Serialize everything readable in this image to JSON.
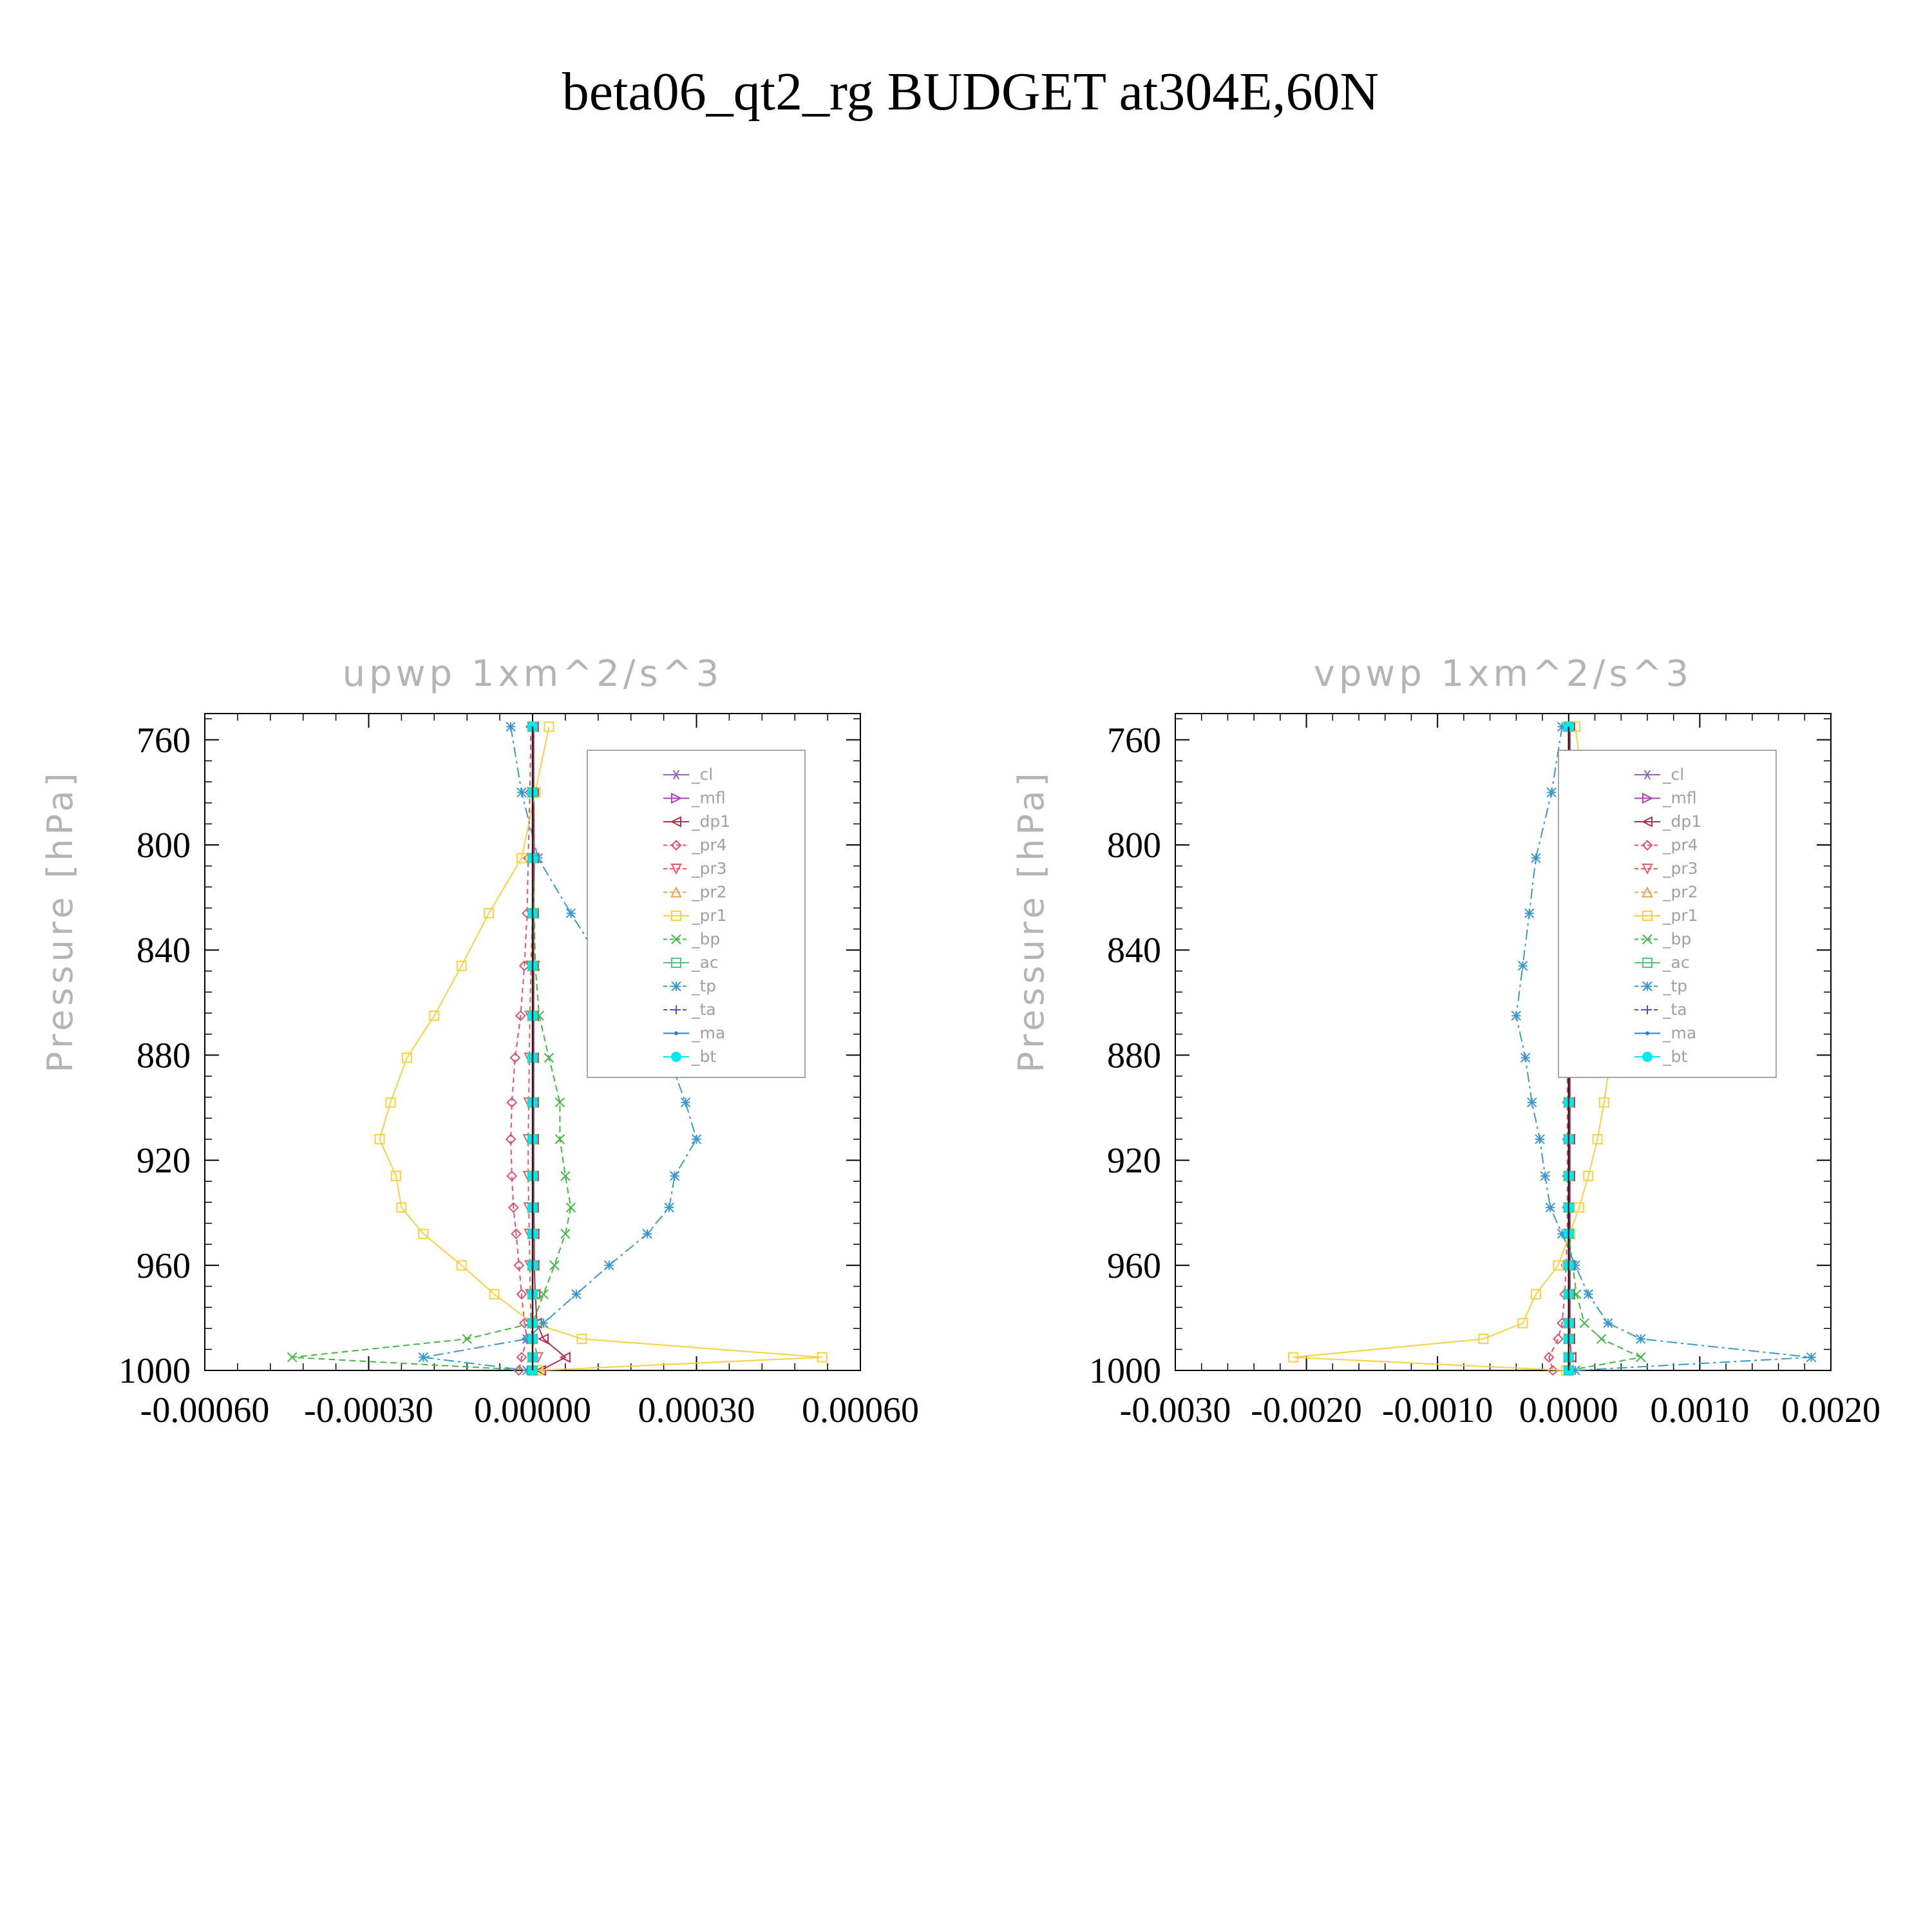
{
  "figure": {
    "title": "beta06_qt2_rg  BUDGET at304E,60N"
  },
  "chart_data": [
    {
      "type": "line",
      "title": "upwp   1xm^2/s^3",
      "ylabel": "Pressure [hPa]",
      "xlabel": "",
      "xlim": [
        -0.0006,
        0.0006
      ],
      "ylim": [
        1000,
        750
      ],
      "x_ticks": [
        -0.0006,
        -0.0003,
        0.0,
        0.0003,
        0.0006
      ],
      "x_tick_labels": [
        "-0.00060",
        "-0.00030",
        "0.00000",
        "0.00030",
        "0.00060"
      ],
      "y_ticks": [
        760,
        800,
        840,
        880,
        920,
        960,
        1000
      ],
      "y_tick_labels": [
        "760",
        "800",
        "840",
        "880",
        "920",
        "960",
        "1000"
      ],
      "grid": false,
      "legend_position": "upper-right",
      "pressure_levels": [
        755,
        780,
        805,
        826,
        846,
        865,
        881,
        898,
        912,
        926,
        938,
        948,
        960,
        971,
        982,
        988,
        995,
        1000
      ],
      "series": [
        {
          "name": "_cl",
          "color": "#9a5cc8",
          "marker": "star",
          "dash": "",
          "values": [
            0,
            0,
            0,
            0,
            0,
            0,
            0,
            0,
            0,
            0,
            0,
            0,
            0,
            0,
            0,
            0,
            0,
            0
          ]
        },
        {
          "name": "_mfl",
          "color": "#b040b8",
          "marker": "tri-right",
          "dash": "",
          "values": [
            0,
            0,
            0,
            0,
            0,
            0,
            0,
            0,
            0,
            0,
            0,
            0,
            0,
            0,
            0,
            0,
            0,
            0
          ]
        },
        {
          "name": "_dp1",
          "color": "#c0284a",
          "marker": "tri-left",
          "dash": "",
          "values": [
            2e-06,
            2e-06,
            3e-06,
            2e-06,
            2e-06,
            2e-06,
            2e-06,
            2e-06,
            2e-06,
            2e-06,
            2e-06,
            3e-06,
            3e-06,
            5e-06,
            8e-06,
            2e-05,
            6e-05,
            1.5e-05
          ]
        },
        {
          "name": "_pr4",
          "color": "#e05070",
          "marker": "diamond",
          "dash": "8,6",
          "values": [
            -3e-06,
            -5e-06,
            -8e-06,
            -1e-05,
            -1.5e-05,
            -2.2e-05,
            -3.2e-05,
            -3.8e-05,
            -4e-05,
            -3.8e-05,
            -3.5e-05,
            -3e-05,
            -2.5e-05,
            -2e-05,
            -1.5e-05,
            -1e-05,
            -2e-05,
            -2.5e-05
          ]
        },
        {
          "name": "_pr3",
          "color": "#e06060",
          "marker": "tri-down",
          "dash": "8,6",
          "values": [
            0,
            0,
            0,
            0,
            -3e-06,
            -5e-06,
            -6e-06,
            -7e-06,
            -8e-06,
            -8e-06,
            -7e-06,
            -6e-06,
            -5e-06,
            -4e-06,
            -3e-06,
            0,
            1e-05,
            0
          ]
        },
        {
          "name": "_pr2",
          "color": "#f0a050",
          "marker": "tri-up",
          "dash": "8,6",
          "values": [
            0,
            0,
            0,
            0,
            0,
            0,
            0,
            0,
            0,
            0,
            0,
            0,
            0,
            0,
            0,
            0,
            0,
            0
          ]
        },
        {
          "name": "_pr1",
          "color": "#f8d040",
          "marker": "square",
          "dash": "",
          "values": [
            3e-05,
            5e-06,
            -2e-05,
            -8e-05,
            -0.00013,
            -0.00018,
            -0.00023,
            -0.00026,
            -0.00028,
            -0.00025,
            -0.00024,
            -0.0002,
            -0.00013,
            -7e-05,
            0,
            9e-05,
            0.00053,
            1e-05
          ]
        },
        {
          "name": "_bp",
          "color": "#40b840",
          "marker": "x",
          "dash": "10,6",
          "values": [
            0,
            0,
            0,
            3e-06,
            5e-06,
            1.2e-05,
            3e-05,
            5e-05,
            5e-05,
            6e-05,
            7e-05,
            6e-05,
            4e-05,
            2e-05,
            0,
            -0.00012,
            -0.00044,
            0
          ]
        },
        {
          "name": "_ac",
          "color": "#50c878",
          "marker": "square",
          "dash": "",
          "values": [
            0,
            0,
            0,
            0,
            0,
            0,
            0,
            0,
            0,
            0,
            0,
            0,
            0,
            0,
            0,
            0,
            0,
            0
          ]
        },
        {
          "name": "_tp",
          "color": "#3898d0",
          "marker": "asterisk",
          "dash": "16,6,4,6",
          "values": [
            -4e-05,
            -2e-05,
            1e-05,
            7e-05,
            0.00013,
            0.00025,
            0.00025,
            0.00028,
            0.0003,
            0.00026,
            0.00025,
            0.00021,
            0.00014,
            8e-05,
            2e-05,
            -1e-05,
            -0.0002,
            -1e-05
          ]
        },
        {
          "name": "_ta",
          "color": "#5050d0",
          "marker": "plus",
          "dash": "8,6",
          "values": [
            0,
            0,
            0,
            0,
            0,
            0,
            0,
            0,
            0,
            0,
            0,
            0,
            0,
            0,
            0,
            0,
            0,
            0
          ]
        },
        {
          "name": "_ma",
          "color": "#3080c0",
          "marker": "dot",
          "dash": "",
          "values": [
            0,
            0,
            0,
            0,
            0,
            0,
            0,
            0,
            0,
            0,
            0,
            0,
            0,
            0,
            0,
            0,
            0,
            0
          ]
        },
        {
          "name": "_bt",
          "color": "#00e8f0",
          "marker": "circle",
          "dash": "",
          "values": [
            0,
            0,
            0,
            0,
            0,
            0,
            0,
            0,
            0,
            0,
            0,
            0,
            0,
            0,
            0,
            0,
            0,
            0
          ]
        }
      ]
    },
    {
      "type": "line",
      "title": "vpwp   1xm^2/s^3",
      "ylabel": "Pressure [hPa]",
      "xlabel": "",
      "xlim": [
        -0.003,
        0.002
      ],
      "ylim": [
        1000,
        750
      ],
      "x_ticks": [
        -0.003,
        -0.002,
        -0.001,
        0.0,
        0.001,
        0.002
      ],
      "x_tick_labels": [
        "-0.0030",
        "-0.0020",
        "-0.0010",
        "0.0000",
        "0.0010",
        "0.0020"
      ],
      "y_ticks": [
        760,
        800,
        840,
        880,
        920,
        960,
        1000
      ],
      "y_tick_labels": [
        "760",
        "800",
        "840",
        "880",
        "920",
        "960",
        "1000"
      ],
      "grid": false,
      "legend_position": "upper-right",
      "pressure_levels": [
        755,
        780,
        805,
        826,
        846,
        865,
        881,
        898,
        912,
        926,
        938,
        948,
        960,
        971,
        982,
        988,
        995,
        1000
      ],
      "series": [
        {
          "name": "_cl",
          "color": "#9a5cc8",
          "marker": "star",
          "dash": "",
          "values": [
            0,
            0,
            0,
            0,
            0,
            0,
            0,
            0,
            0,
            0,
            0,
            0,
            0,
            0,
            0,
            0,
            0,
            0
          ]
        },
        {
          "name": "_mfl",
          "color": "#b040b8",
          "marker": "tri-right",
          "dash": "",
          "values": [
            0,
            0,
            0,
            0,
            0,
            0,
            0,
            0,
            0,
            0,
            0,
            0,
            0,
            0,
            0,
            0,
            0,
            0
          ]
        },
        {
          "name": "_dp1",
          "color": "#c0284a",
          "marker": "tri-left",
          "dash": "",
          "values": [
            1e-05,
            1e-05,
            1e-05,
            1e-05,
            1e-05,
            1e-05,
            1e-05,
            1e-05,
            1e-05,
            1e-05,
            1e-05,
            1e-05,
            1e-05,
            1e-05,
            1e-05,
            1e-05,
            2e-05,
            0
          ]
        },
        {
          "name": "_pr4",
          "color": "#e05070",
          "marker": "diamond",
          "dash": "8,6",
          "values": [
            0,
            0,
            0,
            0,
            0,
            -1e-05,
            -1e-05,
            -1e-05,
            -1e-05,
            -1e-05,
            -1e-05,
            -1e-05,
            -2e-05,
            -3e-05,
            -5e-05,
            -8e-05,
            -0.00015,
            -0.00012
          ]
        },
        {
          "name": "_pr3",
          "color": "#e06060",
          "marker": "tri-down",
          "dash": "8,6",
          "values": [
            0,
            0,
            0,
            0,
            0,
            0,
            0,
            0,
            0,
            0,
            0,
            0,
            0,
            0,
            0,
            0,
            0,
            0
          ]
        },
        {
          "name": "_pr2",
          "color": "#f0a050",
          "marker": "tri-up",
          "dash": "8,6",
          "values": [
            0,
            0,
            0,
            0,
            0,
            0,
            0,
            0,
            0,
            0,
            0,
            0,
            0,
            0,
            0,
            0,
            0,
            0
          ]
        },
        {
          "name": "_pr1",
          "color": "#f8d040",
          "marker": "square",
          "dash": "",
          "values": [
            5e-05,
            0.00012,
            0.0002,
            0.00028,
            0.00032,
            0.00033,
            0.00032,
            0.00027,
            0.00022,
            0.00015,
            8e-05,
            1e-05,
            -8e-05,
            -0.00025,
            -0.00035,
            -0.00065,
            -0.0021,
            -2e-05
          ]
        },
        {
          "name": "_bp",
          "color": "#40b840",
          "marker": "x",
          "dash": "10,6",
          "values": [
            0,
            0,
            0,
            0,
            0,
            0,
            0,
            0,
            0,
            0,
            0,
            0,
            3e-05,
            6e-05,
            0.00012,
            0.00025,
            0.00055,
            0
          ]
        },
        {
          "name": "_ac",
          "color": "#50c878",
          "marker": "square",
          "dash": "",
          "values": [
            0,
            0,
            0,
            0,
            0,
            0,
            0,
            0,
            0,
            0,
            0,
            0,
            0,
            0,
            0,
            0,
            0,
            0
          ]
        },
        {
          "name": "_tp",
          "color": "#3898d0",
          "marker": "asterisk",
          "dash": "16,6,4,6",
          "values": [
            -5e-05,
            -0.00013,
            -0.00025,
            -0.0003,
            -0.00035,
            -0.0004,
            -0.00033,
            -0.00028,
            -0.00022,
            -0.00018,
            -0.00014,
            -5e-05,
            5e-05,
            0.00015,
            0.0003,
            0.00055,
            0.00185,
            5e-05
          ]
        },
        {
          "name": "_ta",
          "color": "#5050d0",
          "marker": "plus",
          "dash": "8,6",
          "values": [
            0,
            0,
            0,
            0,
            0,
            0,
            0,
            0,
            0,
            0,
            0,
            0,
            0,
            0,
            0,
            0,
            0,
            0
          ]
        },
        {
          "name": "_ma",
          "color": "#3080c0",
          "marker": "dot",
          "dash": "",
          "values": [
            0,
            0,
            0,
            0,
            0,
            0,
            0,
            0,
            0,
            0,
            0,
            0,
            0,
            0,
            0,
            0,
            0,
            0
          ]
        },
        {
          "name": "_bt",
          "color": "#00e8f0",
          "marker": "circle",
          "dash": "",
          "values": [
            0,
            0,
            0,
            0,
            0,
            0,
            0,
            0,
            0,
            0,
            0,
            0,
            0,
            0,
            0,
            0,
            0,
            0
          ]
        }
      ]
    }
  ]
}
